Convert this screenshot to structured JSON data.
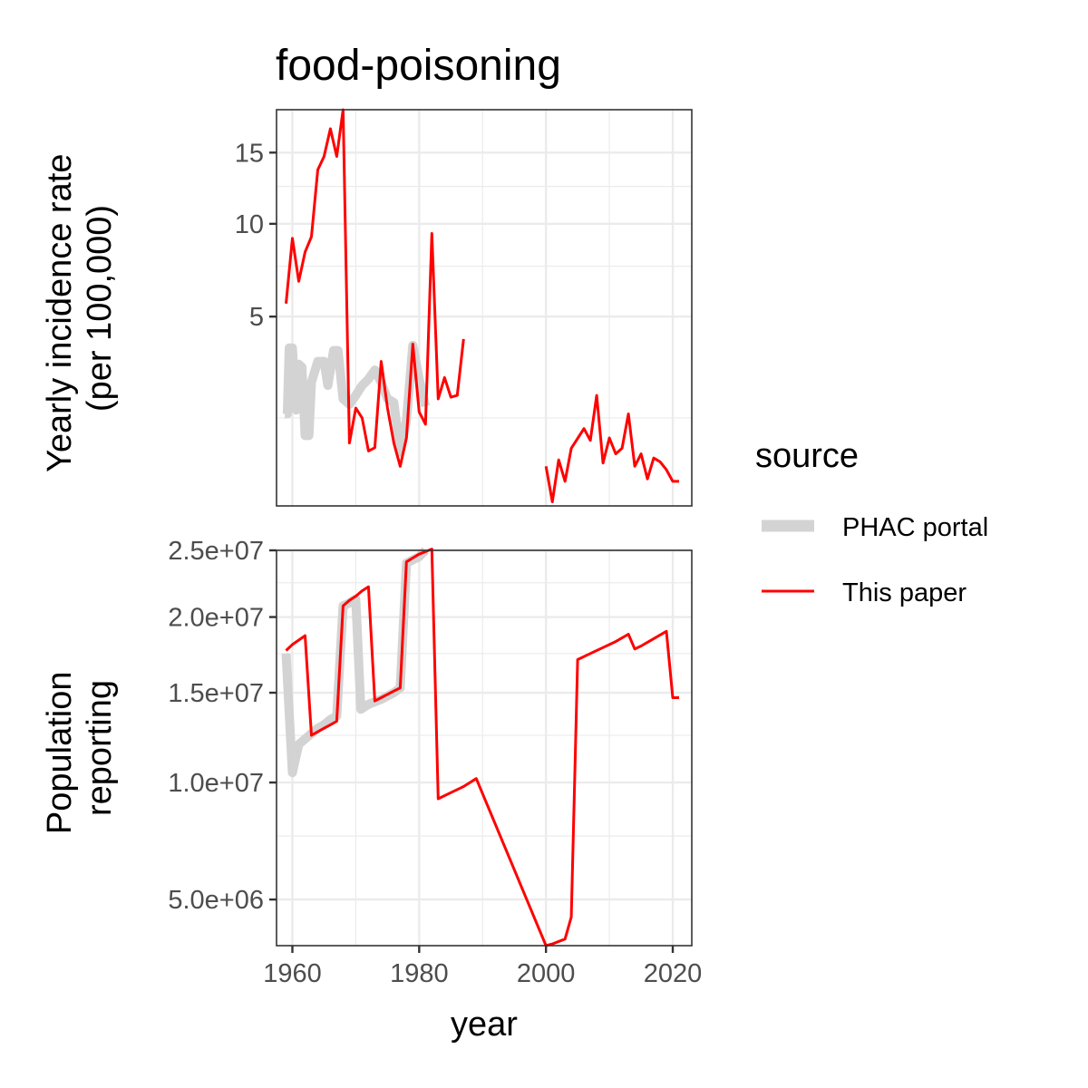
{
  "chart_data": {
    "type": "line",
    "title": "food-poisoning",
    "xlabel": "year",
    "x_ticks": [
      "1960",
      "1980",
      "2000",
      "2020"
    ],
    "xlim": [
      1957.5,
      2023
    ],
    "legend": {
      "title": "source",
      "position": "right",
      "entries": [
        {
          "label": "PHAC portal",
          "color": "#d3d3d3"
        },
        {
          "label": "This paper",
          "color": "#ff0000"
        }
      ]
    },
    "panels": [
      {
        "ylabel": [
          "Yearly incidence rate",
          "(per 100,000)"
        ],
        "scale": "sqrt",
        "ylim": [
          0.12,
          18.5
        ],
        "ticks": [
          5,
          10,
          15
        ],
        "tick_labels": [
          "5",
          "10",
          "15"
        ],
        "minor_ticks": [
          1.5,
          7.5,
          12.5
        ],
        "series": [
          {
            "name": "PHAC portal",
            "color": "#d3d3d3",
            "points": [
              [
                1958.8,
                1.6
              ],
              [
                1959.2,
                1.6
              ],
              [
                1959.5,
                3.7
              ],
              [
                1960,
                3.7
              ],
              [
                1960.6,
                1.7
              ],
              [
                1961,
                3.1
              ],
              [
                1961.5,
                3.0
              ],
              [
                1962,
                1.1
              ],
              [
                1962.6,
                1.1
              ],
              [
                1963,
                2.5
              ],
              [
                1964,
                3.2
              ],
              [
                1965,
                3.2
              ],
              [
                1965.6,
                2.4
              ],
              [
                1966.5,
                3.6
              ],
              [
                1967.2,
                3.6
              ],
              [
                1968,
                2.0
              ],
              [
                1969,
                1.85
              ],
              [
                1970,
                2.1
              ],
              [
                1971,
                2.4
              ],
              [
                1972,
                2.6
              ],
              [
                1973,
                2.9
              ],
              [
                1974,
                2.5
              ],
              [
                1975,
                2.0
              ],
              [
                1976,
                1.9
              ],
              [
                1977,
                0.78
              ],
              [
                1978,
                1.45
              ],
              [
                1979,
                3.8
              ],
              [
                1980,
                2.6
              ],
              [
                1981,
                1.8
              ]
            ]
          },
          {
            "name": "This paper",
            "color": "#ff0000",
            "points": [
              [
                1959,
                5.6
              ],
              [
                1960,
                9.1
              ],
              [
                1961,
                6.7
              ],
              [
                1962,
                8.3
              ],
              [
                1963,
                9.2
              ],
              [
                1964,
                13.7
              ],
              [
                1965,
                14.7
              ],
              [
                1966,
                16.9
              ],
              [
                1967,
                14.7
              ],
              [
                1968,
                18.5
              ],
              [
                1969,
                0.95
              ],
              [
                1970,
                1.75
              ],
              [
                1971,
                1.5
              ],
              [
                1972,
                0.8
              ],
              [
                1973,
                0.86
              ],
              [
                1974,
                3.2
              ],
              [
                1975,
                1.75
              ],
              [
                1976,
                0.95
              ],
              [
                1977,
                0.55
              ],
              [
                1978,
                1.05
              ],
              [
                1979,
                3.85
              ],
              [
                1980,
                1.65
              ],
              [
                1981,
                1.35
              ],
              [
                1982,
                9.4
              ],
              [
                1983,
                2.0
              ],
              [
                1984,
                2.65
              ],
              [
                1985,
                2.05
              ],
              [
                1986,
                2.1
              ],
              [
                1987,
                4.05
              ],
              [
                null,
                null
              ],
              [
                2000,
                0.55
              ],
              [
                2001,
                0.15
              ],
              [
                2002,
                0.65
              ],
              [
                2003,
                0.35
              ],
              [
                2004,
                0.85
              ],
              [
                2006,
                1.25
              ],
              [
                2007,
                1.0
              ],
              [
                2008,
                2.1
              ],
              [
                2009,
                0.6
              ],
              [
                2010,
                1.05
              ],
              [
                2011,
                0.75
              ],
              [
                2012,
                0.85
              ],
              [
                2013,
                1.6
              ],
              [
                2014,
                0.55
              ],
              [
                2015,
                0.75
              ],
              [
                2016,
                0.38
              ],
              [
                2017,
                0.68
              ],
              [
                2018,
                0.62
              ],
              [
                2019,
                0.5
              ],
              [
                2020,
                0.35
              ],
              [
                2021,
                0.35
              ]
            ]
          }
        ]
      },
      {
        "ylabel": [
          "Population",
          "reporting"
        ],
        "scale": "sqrt",
        "ylim": [
          3500000,
          25000000
        ],
        "ticks": [
          5000000,
          10000000,
          15000000,
          20000000,
          25000000
        ],
        "tick_labels": [
          "5.0e+06",
          "1.0e+07",
          "1.5e+07",
          "2.0e+07",
          "2.5e+07"
        ],
        "minor_ticks": [
          7500000,
          12500000,
          17500000,
          22500000
        ],
        "series": [
          {
            "name": "PHAC portal",
            "color": "#d3d3d3",
            "points": [
              [
                1959,
                17500000
              ],
              [
                1960,
                10500000
              ],
              [
                1961,
                12000000
              ],
              [
                1962,
                12300000
              ],
              [
                1963,
                12600000
              ],
              [
                1964,
                12900000
              ],
              [
                1965,
                13100000
              ],
              [
                1966,
                13400000
              ],
              [
                1967,
                13600000
              ],
              [
                1968,
                20800000
              ],
              [
                1969,
                21000000
              ],
              [
                1970,
                21300000
              ],
              [
                1970.8,
                14000000
              ],
              [
                1972,
                14300000
              ],
              [
                1974,
                14600000
              ],
              [
                1976,
                15000000
              ],
              [
                1977,
                15300000
              ],
              [
                1978,
                24000000
              ],
              [
                1980,
                24500000
              ],
              [
                1981,
                25000000
              ]
            ]
          },
          {
            "name": "This paper",
            "color": "#ff0000",
            "points": [
              [
                1959,
                17700000
              ],
              [
                1960,
                18100000
              ],
              [
                1961,
                18400000
              ],
              [
                1962,
                18700000
              ],
              [
                1963,
                12500000
              ],
              [
                1964,
                12700000
              ],
              [
                1965,
                12900000
              ],
              [
                1966,
                13100000
              ],
              [
                1967,
                13300000
              ],
              [
                1968,
                20800000
              ],
              [
                1969,
                21200000
              ],
              [
                1970,
                21500000
              ],
              [
                1971,
                21900000
              ],
              [
                1972,
                22200000
              ],
              [
                1973,
                14500000
              ],
              [
                1974,
                14700000
              ],
              [
                1975,
                14900000
              ],
              [
                1976,
                15100000
              ],
              [
                1977,
                15300000
              ],
              [
                1978,
                24100000
              ],
              [
                1979,
                24400000
              ],
              [
                1980,
                24700000
              ],
              [
                1982,
                25100000
              ],
              [
                1983,
                9200000
              ],
              [
                1985,
                9500000
              ],
              [
                1987,
                9800000
              ],
              [
                1989,
                10200000
              ],
              [
                2000,
                3500000
              ],
              [
                2001,
                3550000
              ],
              [
                2003,
                3700000
              ],
              [
                2004,
                4400000
              ],
              [
                2005,
                17100000
              ],
              [
                2007,
                17500000
              ],
              [
                2009,
                17900000
              ],
              [
                2011,
                18300000
              ],
              [
                2013,
                18800000
              ],
              [
                2014,
                17800000
              ],
              [
                2015,
                18000000
              ],
              [
                2017,
                18500000
              ],
              [
                2019,
                19000000
              ],
              [
                2020,
                14700000
              ],
              [
                2021,
                14700000
              ]
            ]
          }
        ]
      }
    ]
  }
}
